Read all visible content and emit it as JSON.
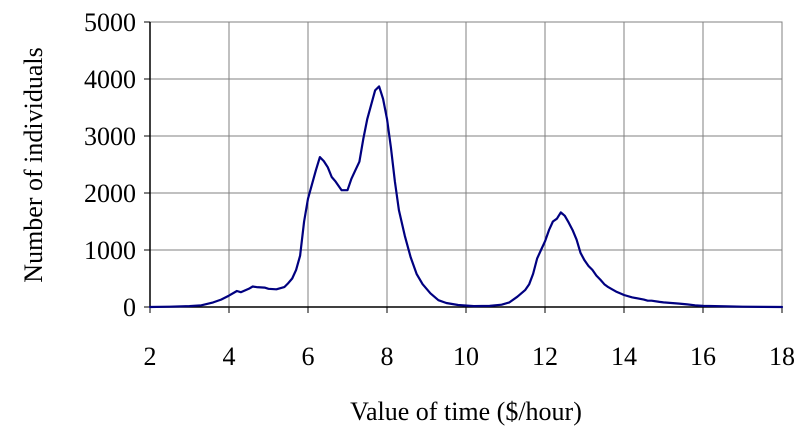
{
  "chart_data": {
    "type": "line",
    "title": "",
    "xlabel": "Value of time ($/hour)",
    "ylabel": "Number of individuals",
    "xlim": [
      2,
      18
    ],
    "ylim": [
      0,
      5000
    ],
    "xticks": [
      2,
      4,
      6,
      8,
      10,
      12,
      14,
      16,
      18
    ],
    "yticks": [
      0,
      1000,
      2000,
      3000,
      4000,
      5000
    ],
    "grid": true,
    "legend": "none",
    "line_color": "#000080",
    "series": [
      {
        "x": [
          2,
          2.5,
          3,
          3.3,
          3.6,
          3.8,
          4.0,
          4.2,
          4.3,
          4.5,
          4.6,
          4.7,
          4.9,
          5.0,
          5.2,
          5.4,
          5.5,
          5.6,
          5.7,
          5.8,
          5.9,
          6.0,
          6.2,
          6.3,
          6.4,
          6.5,
          6.6,
          6.7,
          6.85,
          7.0,
          7.1,
          7.2,
          7.3,
          7.4,
          7.5,
          7.6,
          7.7,
          7.8,
          7.9,
          8.0,
          8.1,
          8.2,
          8.3,
          8.45,
          8.6,
          8.75,
          8.9,
          9.1,
          9.3,
          9.5,
          9.8,
          10.2,
          10.6,
          10.9,
          11.1,
          11.3,
          11.5,
          11.6,
          11.7,
          11.8,
          11.9,
          12.0,
          12.1,
          12.2,
          12.3,
          12.4,
          12.5,
          12.6,
          12.7,
          12.8,
          12.9,
          13.0,
          13.1,
          13.2,
          13.3,
          13.4,
          13.5,
          13.6,
          13.7,
          13.8,
          13.9,
          14.0,
          14.2,
          14.5,
          14.6,
          14.7,
          14.9,
          15.0,
          15.2,
          15.4,
          15.6,
          15.8,
          16.0,
          16.3,
          16.6,
          17.0,
          17.5,
          18.0
        ],
        "values": [
          0,
          5,
          15,
          30,
          80,
          130,
          200,
          280,
          260,
          320,
          360,
          350,
          340,
          320,
          310,
          350,
          420,
          500,
          650,
          900,
          1500,
          1900,
          2400,
          2630,
          2560,
          2450,
          2280,
          2200,
          2050,
          2050,
          2250,
          2400,
          2550,
          2950,
          3300,
          3550,
          3800,
          3870,
          3650,
          3300,
          2800,
          2200,
          1700,
          1250,
          870,
          580,
          400,
          240,
          120,
          70,
          35,
          15,
          20,
          40,
          80,
          180,
          300,
          400,
          580,
          850,
          1000,
          1150,
          1350,
          1500,
          1550,
          1660,
          1600,
          1480,
          1350,
          1180,
          950,
          820,
          720,
          650,
          550,
          480,
          400,
          350,
          310,
          270,
          240,
          210,
          170,
          130,
          110,
          110,
          90,
          80,
          70,
          60,
          45,
          30,
          20,
          15,
          10,
          5,
          2,
          0
        ]
      }
    ]
  }
}
